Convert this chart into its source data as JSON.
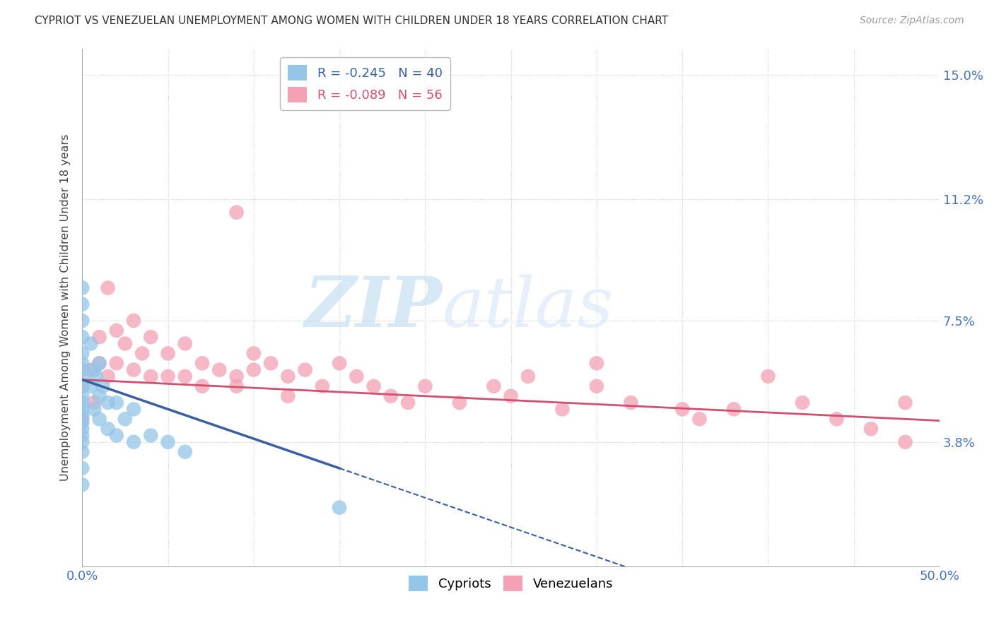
{
  "title": "CYPRIOT VS VENEZUELAN UNEMPLOYMENT AMONG WOMEN WITH CHILDREN UNDER 18 YEARS CORRELATION CHART",
  "source": "Source: ZipAtlas.com",
  "ylabel": "Unemployment Among Women with Children Under 18 years",
  "xlim": [
    0.0,
    0.5
  ],
  "ylim": [
    0.0,
    0.158
  ],
  "xtick_positions": [
    0.0,
    0.05,
    0.1,
    0.15,
    0.2,
    0.25,
    0.3,
    0.35,
    0.4,
    0.45,
    0.5
  ],
  "ytick_positions": [
    0.038,
    0.075,
    0.112,
    0.15
  ],
  "ytick_labels": [
    "3.8%",
    "7.5%",
    "11.2%",
    "15.0%"
  ],
  "legend_entry1": "R = -0.245   N = 40",
  "legend_entry2": "R = -0.089   N = 56",
  "color_cypriot": "#93C6E8",
  "color_venezuelan": "#F4A0B5",
  "line_color_cypriot": "#3A5FA0",
  "line_color_venezuelan": "#D05070",
  "background_color": "#FFFFFF",
  "cypriot_x": [
    0.0,
    0.0,
    0.0,
    0.0,
    0.0,
    0.0,
    0.0,
    0.0,
    0.0,
    0.0,
    0.0,
    0.0,
    0.0,
    0.0,
    0.0,
    0.0,
    0.0,
    0.0,
    0.0,
    0.0,
    0.005,
    0.005,
    0.007,
    0.007,
    0.008,
    0.01,
    0.01,
    0.01,
    0.012,
    0.015,
    0.015,
    0.02,
    0.02,
    0.025,
    0.03,
    0.03,
    0.04,
    0.05,
    0.06,
    0.15
  ],
  "cypriot_y": [
    0.085,
    0.08,
    0.075,
    0.07,
    0.065,
    0.062,
    0.06,
    0.058,
    0.055,
    0.052,
    0.05,
    0.048,
    0.046,
    0.044,
    0.042,
    0.04,
    0.038,
    0.035,
    0.03,
    0.025,
    0.068,
    0.055,
    0.06,
    0.048,
    0.058,
    0.062,
    0.052,
    0.045,
    0.055,
    0.05,
    0.042,
    0.05,
    0.04,
    0.045,
    0.048,
    0.038,
    0.04,
    0.038,
    0.035,
    0.018
  ],
  "venezuelan_x": [
    0.0,
    0.0,
    0.005,
    0.007,
    0.01,
    0.01,
    0.015,
    0.015,
    0.02,
    0.02,
    0.025,
    0.03,
    0.03,
    0.035,
    0.04,
    0.04,
    0.05,
    0.05,
    0.06,
    0.06,
    0.07,
    0.07,
    0.08,
    0.09,
    0.09,
    0.1,
    0.1,
    0.11,
    0.12,
    0.12,
    0.13,
    0.14,
    0.15,
    0.16,
    0.17,
    0.18,
    0.19,
    0.2,
    0.22,
    0.24,
    0.25,
    0.26,
    0.28,
    0.3,
    0.32,
    0.35,
    0.36,
    0.38,
    0.4,
    0.42,
    0.44,
    0.46,
    0.48,
    0.48,
    0.09,
    0.3
  ],
  "venezuelan_y": [
    0.055,
    0.045,
    0.06,
    0.05,
    0.07,
    0.062,
    0.085,
    0.058,
    0.072,
    0.062,
    0.068,
    0.075,
    0.06,
    0.065,
    0.07,
    0.058,
    0.065,
    0.058,
    0.068,
    0.058,
    0.062,
    0.055,
    0.06,
    0.108,
    0.058,
    0.065,
    0.06,
    0.062,
    0.058,
    0.052,
    0.06,
    0.055,
    0.062,
    0.058,
    0.055,
    0.052,
    0.05,
    0.055,
    0.05,
    0.055,
    0.052,
    0.058,
    0.048,
    0.062,
    0.05,
    0.048,
    0.045,
    0.048,
    0.058,
    0.05,
    0.045,
    0.042,
    0.05,
    0.038,
    0.055,
    0.055
  ],
  "cyp_slope": -0.18,
  "cyp_intercept": 0.057,
  "ven_slope": -0.025,
  "ven_intercept": 0.057
}
